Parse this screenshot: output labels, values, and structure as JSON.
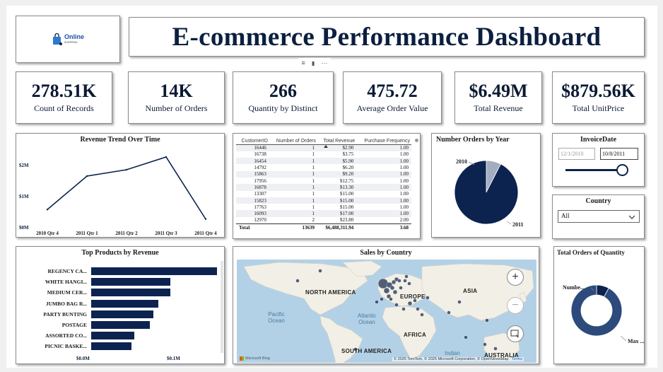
{
  "header": {
    "title": "E-commerce Performance Dashboard",
    "logo_text": "Online",
    "logo_subtext": "SHOPPING"
  },
  "kpis": [
    {
      "value": "278.51K",
      "label": "Count of Records"
    },
    {
      "value": "14K",
      "label": "Number of Orders"
    },
    {
      "value": "266",
      "label": "Quantity by Distinct"
    },
    {
      "value": "475.72",
      "label": "Average Order Value"
    },
    {
      "value": "$6.49M",
      "label": "Total Revenue"
    },
    {
      "value": "$879.56K",
      "label": "Total UnitPrice"
    }
  ],
  "revenue_trend": {
    "title": "Revenue Trend Over Time",
    "y_ticks": [
      "$2M",
      "$1M",
      "$0M"
    ]
  },
  "customer_table": {
    "columns": [
      "CustomerID",
      "Number of Orders",
      "Total Revenue",
      "Purchase Frequency"
    ],
    "rows": [
      [
        "16446",
        "1",
        "$2.90",
        "1.00"
      ],
      [
        "16738",
        "1",
        "$3.75",
        "1.00"
      ],
      [
        "16454",
        "1",
        "$5.90",
        "1.00"
      ],
      [
        "14792",
        "1",
        "$6.20",
        "1.00"
      ],
      [
        "15863",
        "1",
        "$9.20",
        "1.00"
      ],
      [
        "17956",
        "1",
        "$12.75",
        "1.00"
      ],
      [
        "16878",
        "1",
        "$13.30",
        "1.00"
      ],
      [
        "13307",
        "1",
        "$15.00",
        "1.00"
      ],
      [
        "15823",
        "1",
        "$15.00",
        "1.00"
      ],
      [
        "17763",
        "1",
        "$15.00",
        "1.00"
      ],
      [
        "16093",
        "1",
        "$17.00",
        "1.00"
      ],
      [
        "12970",
        "2",
        "$23.80",
        "2.00"
      ]
    ],
    "total": [
      "Total",
      "13639",
      "$6,488,311.94",
      "3.68"
    ]
  },
  "orders_by_year": {
    "title": "Number Orders by Year"
  },
  "invoice_date": {
    "title": "InvoiceDate",
    "start": "12/1/2010",
    "end": "10/8/2011"
  },
  "country_filter": {
    "title": "Country",
    "selected": "All"
  },
  "top_products": {
    "title": "Top Products by Revenue",
    "x_ticks": [
      "$0.0M",
      "$0.1M"
    ]
  },
  "sales_map": {
    "title": "Sales by Country",
    "continents": [
      "NORTH AMERICA",
      "EUROPE",
      "ASIA",
      "AFRICA",
      "SOUTH AMERICA",
      "AUSTRALIA"
    ],
    "oceans": [
      "Pacific Ocean",
      "Atlantic Ocean",
      "Indian"
    ],
    "attribution": "© 2025 TomTom, © 2025 Microsoft Corporation, © OpenStreetMap",
    "terms": "Terms",
    "bing": "Microsoft Bing",
    "zoom_in": "+",
    "zoom_out": "−"
  },
  "orders_quantity_donut": {
    "title": "Total Orders of Quantity",
    "label_top": "Numbe...",
    "label_bottom": "Max ..."
  },
  "chart_data": [
    {
      "type": "line",
      "title": "Revenue Trend Over Time",
      "categories": [
        "2010 Qtr 4",
        "2011 Qtr 1",
        "2011 Qtr 2",
        "2011 Qtr 3",
        "2011 Qtr 4"
      ],
      "values": [
        0.55,
        1.6,
        1.8,
        2.2,
        0.25
      ],
      "ylim": [
        0,
        2.4
      ],
      "ylabel_unit": "$M"
    },
    {
      "type": "pie",
      "title": "Number Orders by Year",
      "categories": [
        "2010",
        "2011"
      ],
      "values": [
        0.075,
        0.925
      ],
      "colors": [
        "#a3adbf",
        "#0c2350"
      ]
    },
    {
      "type": "bar",
      "orientation": "horizontal",
      "title": "Top Products by Revenue",
      "categories": [
        "REGENCY CA...",
        "WHITE HANGI...",
        "MEDIUM CER...",
        "JUMBO BAG R...",
        "PARTY BUNTING",
        "POSTAGE",
        "ASSORTED CO...",
        "PICNIC BASKE..."
      ],
      "values": [
        0.164,
        0.103,
        0.103,
        0.087,
        0.081,
        0.076,
        0.056,
        0.052
      ],
      "xlim": [
        0,
        0.17
      ]
    },
    {
      "type": "pie",
      "title": "Total Orders of Quantity",
      "categories": [
        "Numbe...",
        "Max ..."
      ],
      "values": [
        0.08,
        0.92
      ],
      "colors": [
        "#0c2350",
        "#2c4a7c"
      ]
    }
  ]
}
